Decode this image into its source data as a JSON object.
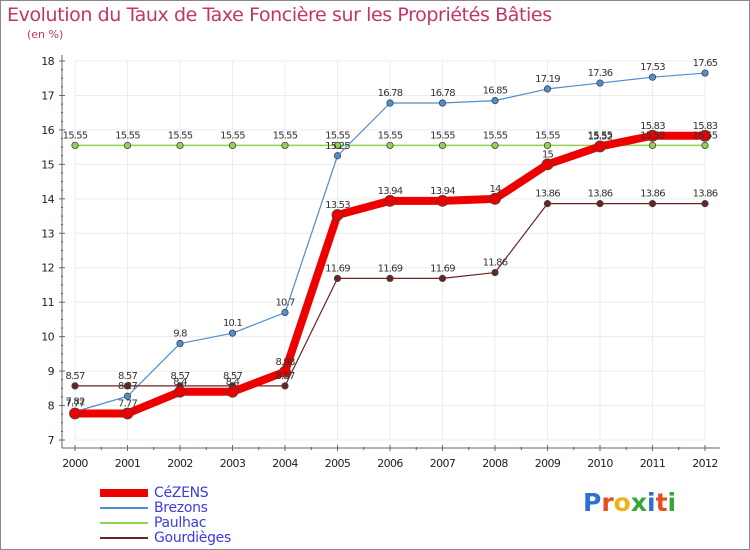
{
  "title": "Evolution du Taux de Taxe Foncière sur les Propriétés Bâties",
  "unit_label": "(en %)",
  "logo": {
    "letters": [
      "P",
      "r",
      "o",
      "x",
      "i",
      "t",
      "i"
    ],
    "colors": [
      "#2f6fd0",
      "#e84d1c",
      "#f0b21a",
      "#3aa53a",
      "#2f6fd0",
      "#e84d1c",
      "#3aa53a"
    ]
  },
  "colors": {
    "title": "#c4346c",
    "legend_text": "#3c3cde",
    "axis": "#555555",
    "grid": "#ececec"
  },
  "chart_data": {
    "type": "line",
    "title": "Evolution du Taux de Taxe Foncière sur les Propriétés Bâties",
    "ylabel": "(en %)",
    "xlabel": "",
    "x": [
      "2000",
      "2001",
      "2002",
      "2003",
      "2004",
      "2005",
      "2006",
      "2007",
      "2008",
      "2009",
      "2010",
      "2011",
      "2012"
    ],
    "yticks": [
      "7",
      "8",
      "9",
      "10",
      "11",
      "12",
      "13",
      "14",
      "15",
      "16",
      "17",
      "18"
    ],
    "ylim": [
      7,
      18
    ],
    "grid": true,
    "legend_position": "bottom-left",
    "series": [
      {
        "name": "Brezons",
        "color": "#4d8fd0",
        "width": 1.2,
        "marker": "dot",
        "values": [
          7.82,
          8.27,
          9.8,
          10.1,
          10.7,
          15.25,
          16.78,
          16.78,
          16.85,
          17.19,
          17.36,
          17.53,
          17.65
        ],
        "labels": [
          "7.82",
          "8.27",
          "9.8",
          "10.1",
          "10.7",
          "15.25",
          "16.78",
          "16.78",
          "16.85",
          "17.19",
          "17.36",
          "17.53",
          "17.65"
        ]
      },
      {
        "name": "Paulhac",
        "color": "#8fd650",
        "width": 1.5,
        "marker": "dot",
        "values": [
          15.55,
          15.55,
          15.55,
          15.55,
          15.55,
          15.55,
          15.55,
          15.55,
          15.55,
          15.55,
          15.55,
          15.55,
          15.55
        ],
        "labels": [
          "15.55",
          "15.55",
          "15.55",
          "15.55",
          "15.55",
          "15.55",
          "15.55",
          "15.55",
          "15.55",
          "15.55",
          "15.55",
          "15.55",
          "15.55"
        ]
      },
      {
        "name": "Gourdièges",
        "color": "#6b2424",
        "width": 1.2,
        "marker": "dot",
        "values": [
          8.57,
          8.57,
          8.57,
          8.57,
          8.57,
          11.69,
          11.69,
          11.69,
          11.86,
          13.86,
          13.86,
          13.86,
          13.86
        ],
        "labels": [
          "8.57",
          "8.57",
          "8.57",
          "8.57",
          "8.57",
          "11.69",
          "11.69",
          "11.69",
          "11.86",
          "13.86",
          "13.86",
          "13.86",
          "13.86"
        ]
      },
      {
        "name": "CéZENS",
        "color": "#ee0000",
        "width": 8,
        "marker": "dot",
        "values": [
          7.77,
          7.77,
          8.4,
          8.4,
          8.98,
          13.53,
          13.94,
          13.94,
          14.0,
          15.0,
          15.52,
          15.83,
          15.83
        ],
        "labels": [
          "7.77",
          "7.77",
          "8.4",
          "8.4",
          "8.98",
          "13.53",
          "13.94",
          "13.94",
          "14",
          "15",
          "15.52",
          "15.83",
          "15.83"
        ]
      }
    ],
    "legend": [
      "CéZENS",
      "Brezons",
      "Paulhac",
      "Gourdièges"
    ]
  }
}
